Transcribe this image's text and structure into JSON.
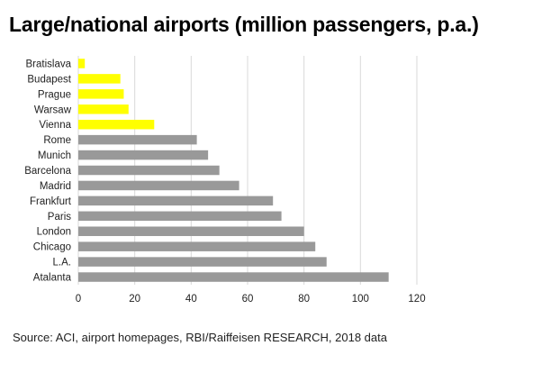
{
  "title": "Large/national airports (million passengers, p.a.)",
  "source": "Source: ACI, airport homepages, RBI/Raiffeisen RESEARCH, 2018 data",
  "chart_data": {
    "type": "bar",
    "orientation": "horizontal",
    "title": "Large/national airports (million passengers, p.a.)",
    "categories": [
      "Bratislava",
      "Budapest",
      "Prague",
      "Warsaw",
      "Vienna",
      "Rome",
      "Munich",
      "Barcelona",
      "Madrid",
      "Frankfurt",
      "Paris",
      "London",
      "Chicago",
      "L.A.",
      "Atalanta"
    ],
    "values": [
      2.3,
      14.9,
      16.1,
      17.8,
      26.9,
      42,
      46,
      50,
      57,
      69,
      72,
      80,
      84,
      88,
      110
    ],
    "bar_colors": [
      "#ffff00",
      "#ffff00",
      "#ffff00",
      "#ffff00",
      "#ffff00",
      "#999999",
      "#999999",
      "#999999",
      "#999999",
      "#999999",
      "#999999",
      "#999999",
      "#999999",
      "#999999",
      "#999999"
    ],
    "xlim": [
      0,
      120
    ],
    "xticks": [
      0,
      20,
      40,
      60,
      80,
      100,
      120
    ],
    "grid": "vertical",
    "grid_color": "#d9d9d9",
    "xlabel": "",
    "ylabel": ""
  }
}
